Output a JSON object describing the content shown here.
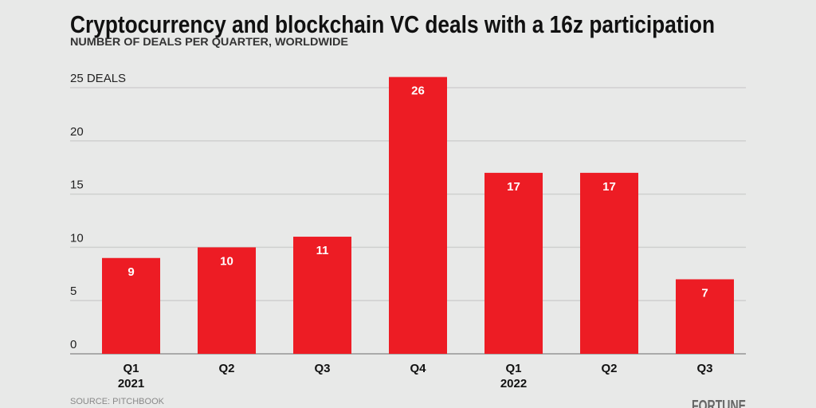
{
  "chart_data": {
    "type": "bar",
    "title": "Cryptocurrency and blockchain VC deals with a 16z participation",
    "subtitle": "NUMBER OF DEALS PER QUARTER, WORLDWIDE",
    "categories": [
      "Q1",
      "Q2",
      "Q3",
      "Q4",
      "Q1",
      "Q2",
      "Q3"
    ],
    "category_years": [
      "2021",
      "",
      "",
      "",
      "2022",
      "",
      ""
    ],
    "values": [
      9,
      10,
      11,
      26,
      17,
      17,
      7
    ],
    "yticks": [
      "0",
      "5",
      "10",
      "15",
      "20",
      "25 DEALS"
    ],
    "ytick_values": [
      0,
      5,
      10,
      15,
      20,
      25
    ],
    "ylim": [
      0,
      26
    ],
    "grid": true,
    "bar_color": "#ed1c24",
    "source": "SOURCE: PITCHBOOK",
    "logo": "FORTUNE"
  }
}
